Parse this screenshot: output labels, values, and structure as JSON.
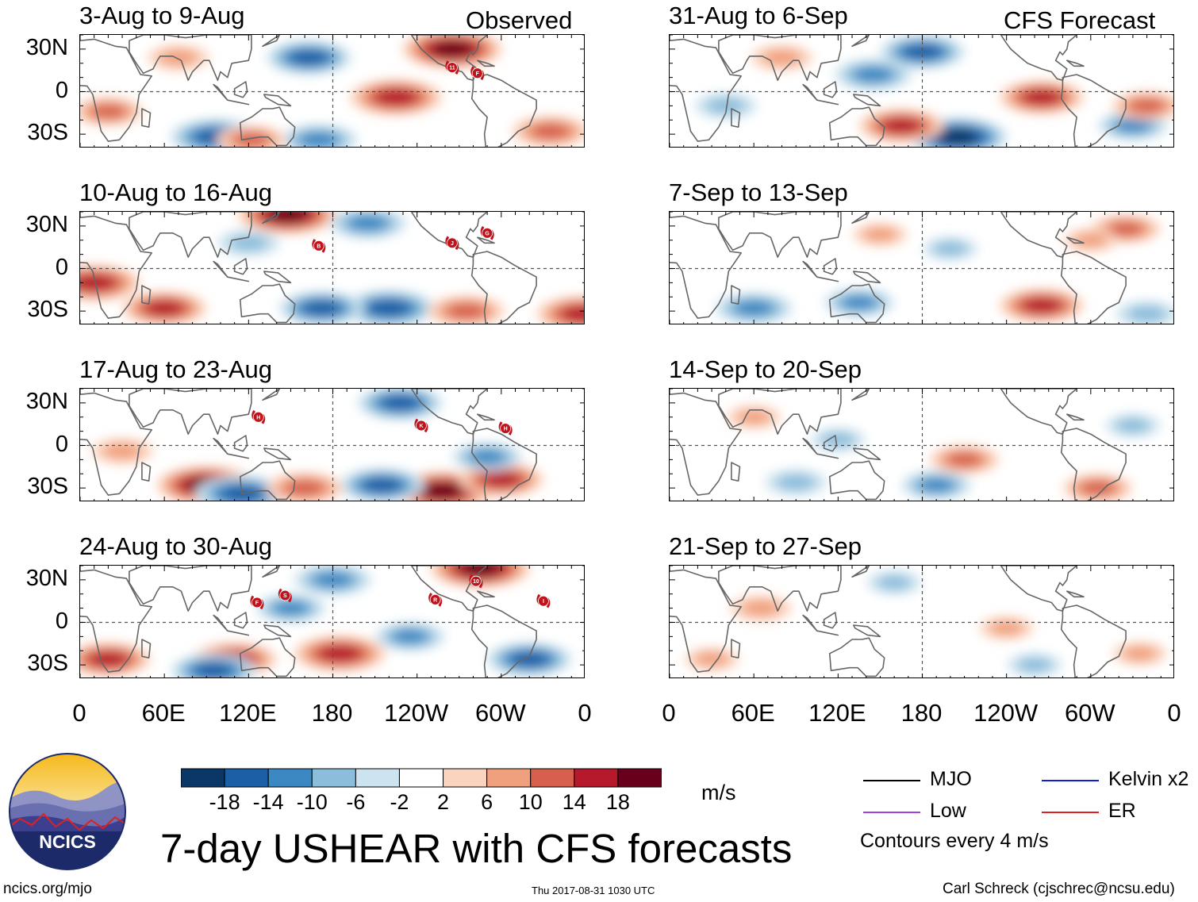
{
  "headers": {
    "observed": "Observed",
    "forecast": "CFS Forecast"
  },
  "lat_labels": [
    "30N",
    "0",
    "30S"
  ],
  "lon_labels": [
    "0",
    "60E",
    "120E",
    "180",
    "120W",
    "60W",
    "0"
  ],
  "colors": {
    "scale": [
      "#0a3766",
      "#1d5fa6",
      "#3b88c2",
      "#8cbddb",
      "#cde3ef",
      "#ffffff",
      "#fbd4c0",
      "#f0a07d",
      "#d6604d",
      "#b5192b",
      "#69001b"
    ],
    "land": "#666666",
    "tc_marker": "#c0141d"
  },
  "chart_data": [
    {
      "type": "heatmap",
      "column": "observed",
      "title": "3-Aug to 9-Aug",
      "variable": "USHEAR",
      "units": "m/s",
      "x_range": [
        0,
        360
      ],
      "y_range": [
        -40,
        40
      ],
      "tc_labels": [
        "11",
        "F"
      ],
      "blobs": [
        {
          "lon": 163,
          "lat": 24,
          "v": -14
        },
        {
          "lon": 225,
          "lat": -4,
          "v": 16
        },
        {
          "lon": 97,
          "lat": -32,
          "v": -16
        },
        {
          "lon": 170,
          "lat": -34,
          "v": -12
        },
        {
          "lon": 20,
          "lat": -14,
          "v": 10
        },
        {
          "lon": 265,
          "lat": 30,
          "v": 18
        },
        {
          "lon": 335,
          "lat": -28,
          "v": 12
        },
        {
          "lon": 70,
          "lat": 24,
          "v": 8
        },
        {
          "lon": 122,
          "lat": -34,
          "v": 10
        }
      ]
    },
    {
      "type": "heatmap",
      "column": "observed",
      "title": "10-Aug to 16-Aug",
      "variable": "USHEAR",
      "units": "m/s",
      "x_range": [
        0,
        360
      ],
      "y_range": [
        -40,
        40
      ],
      "tc_labels": [
        "B",
        "J",
        "G"
      ],
      "blobs": [
        {
          "lon": 10,
          "lat": -10,
          "v": 16
        },
        {
          "lon": 148,
          "lat": 38,
          "v": 18
        },
        {
          "lon": 220,
          "lat": -28,
          "v": -16
        },
        {
          "lon": 172,
          "lat": -28,
          "v": -14
        },
        {
          "lon": 205,
          "lat": 32,
          "v": -12
        },
        {
          "lon": 275,
          "lat": -30,
          "v": 12
        },
        {
          "lon": 60,
          "lat": -28,
          "v": 14
        },
        {
          "lon": 358,
          "lat": -32,
          "v": 16
        },
        {
          "lon": 120,
          "lat": 18,
          "v": -8
        }
      ]
    },
    {
      "type": "heatmap",
      "column": "observed",
      "title": "17-Aug to 23-Aug",
      "variable": "USHEAR",
      "units": "m/s",
      "x_range": [
        0,
        360
      ],
      "y_range": [
        -40,
        40
      ],
      "tc_labels": [
        "H",
        "K",
        "H"
      ],
      "blobs": [
        {
          "lon": 90,
          "lat": -28,
          "v": 18
        },
        {
          "lon": 258,
          "lat": -32,
          "v": 18
        },
        {
          "lon": 215,
          "lat": -28,
          "v": -14
        },
        {
          "lon": 115,
          "lat": -34,
          "v": -16
        },
        {
          "lon": 228,
          "lat": 30,
          "v": -14
        },
        {
          "lon": 300,
          "lat": -24,
          "v": 14
        },
        {
          "lon": 160,
          "lat": -30,
          "v": 12
        },
        {
          "lon": 290,
          "lat": -8,
          "v": -10
        },
        {
          "lon": 30,
          "lat": -4,
          "v": 8
        }
      ]
    },
    {
      "type": "heatmap",
      "column": "observed",
      "title": "24-Aug to 30-Aug",
      "variable": "USHEAR",
      "units": "m/s",
      "x_range": [
        0,
        360
      ],
      "y_range": [
        -40,
        40
      ],
      "tc_labels": [
        "F",
        "S",
        "R",
        "10",
        "I"
      ],
      "blobs": [
        {
          "lon": 285,
          "lat": 38,
          "v": 18
        },
        {
          "lon": 110,
          "lat": -26,
          "v": 14
        },
        {
          "lon": 185,
          "lat": -22,
          "v": 16
        },
        {
          "lon": 95,
          "lat": -34,
          "v": -14
        },
        {
          "lon": 180,
          "lat": 30,
          "v": -12
        },
        {
          "lon": 320,
          "lat": -26,
          "v": -14
        },
        {
          "lon": 20,
          "lat": -26,
          "v": 14
        },
        {
          "lon": 235,
          "lat": -10,
          "v": -10
        },
        {
          "lon": 150,
          "lat": 10,
          "v": -10
        }
      ]
    },
    {
      "type": "heatmap",
      "column": "forecast",
      "title": "31-Aug to 6-Sep",
      "variable": "USHEAR",
      "units": "m/s",
      "x_range": [
        0,
        360
      ],
      "y_range": [
        -40,
        40
      ],
      "tc_labels": [],
      "blobs": [
        {
          "lon": 205,
          "lat": -32,
          "v": -18
        },
        {
          "lon": 165,
          "lat": -24,
          "v": 14
        },
        {
          "lon": 265,
          "lat": -4,
          "v": 14
        },
        {
          "lon": 145,
          "lat": 12,
          "v": -12
        },
        {
          "lon": 180,
          "lat": 28,
          "v": -14
        },
        {
          "lon": 330,
          "lat": -24,
          "v": -10
        },
        {
          "lon": 340,
          "lat": -10,
          "v": 10
        },
        {
          "lon": 40,
          "lat": -10,
          "v": -8
        },
        {
          "lon": 80,
          "lat": 24,
          "v": 8
        }
      ]
    },
    {
      "type": "heatmap",
      "column": "forecast",
      "title": "7-Sep to 13-Sep",
      "variable": "USHEAR",
      "units": "m/s",
      "x_range": [
        0,
        360
      ],
      "y_range": [
        -40,
        40
      ],
      "tc_labels": [],
      "blobs": [
        {
          "lon": 60,
          "lat": -28,
          "v": -12
        },
        {
          "lon": 135,
          "lat": -24,
          "v": -10
        },
        {
          "lon": 265,
          "lat": -26,
          "v": 14
        },
        {
          "lon": 325,
          "lat": 28,
          "v": 10
        },
        {
          "lon": 300,
          "lat": 20,
          "v": 6
        },
        {
          "lon": 340,
          "lat": -32,
          "v": -8
        },
        {
          "lon": 200,
          "lat": 14,
          "v": -6
        },
        {
          "lon": 150,
          "lat": 24,
          "v": 6
        }
      ]
    },
    {
      "type": "heatmap",
      "column": "forecast",
      "title": "14-Sep to 20-Sep",
      "variable": "USHEAR",
      "units": "m/s",
      "x_range": [
        0,
        360
      ],
      "y_range": [
        -40,
        40
      ],
      "tc_labels": [],
      "blobs": [
        {
          "lon": 210,
          "lat": -10,
          "v": 10
        },
        {
          "lon": 90,
          "lat": -26,
          "v": -8
        },
        {
          "lon": 190,
          "lat": -28,
          "v": -10
        },
        {
          "lon": 305,
          "lat": -30,
          "v": 10
        },
        {
          "lon": 120,
          "lat": 4,
          "v": -6
        },
        {
          "lon": 60,
          "lat": 20,
          "v": 6
        },
        {
          "lon": 330,
          "lat": 14,
          "v": -6
        }
      ]
    },
    {
      "type": "heatmap",
      "column": "forecast",
      "title": "21-Sep to 27-Sep",
      "variable": "USHEAR",
      "units": "m/s",
      "x_range": [
        0,
        360
      ],
      "y_range": [
        -40,
        40
      ],
      "tc_labels": [],
      "blobs": [
        {
          "lon": 65,
          "lat": 10,
          "v": 8
        },
        {
          "lon": 240,
          "lat": -4,
          "v": 6
        },
        {
          "lon": 30,
          "lat": -26,
          "v": 6
        },
        {
          "lon": 260,
          "lat": -30,
          "v": -6
        },
        {
          "lon": 335,
          "lat": -22,
          "v": 6
        },
        {
          "lon": 160,
          "lat": 28,
          "v": -6
        }
      ]
    }
  ],
  "colorbar": {
    "ticks": [
      "-18",
      "-14",
      "-10",
      "-6",
      "-2",
      "2",
      "6",
      "10",
      "14",
      "18"
    ],
    "units": "m/s"
  },
  "legend": [
    {
      "label": "MJO",
      "color": "#000000"
    },
    {
      "label": "Kelvin x2",
      "color": "#1020d0"
    },
    {
      "label": "Low",
      "color": "#a040e0"
    },
    {
      "label": "ER",
      "color": "#e02020"
    }
  ],
  "contour_note": "Contours every 4 m/s",
  "logo_text": "NCICS",
  "main_title": "7-day USHEAR with CFS forecasts",
  "footer": {
    "url": "ncics.org/mjo",
    "timestamp": "Thu 2017-08-31 1030 UTC",
    "credit": "Carl Schreck (cjschrec@ncsu.edu)"
  }
}
